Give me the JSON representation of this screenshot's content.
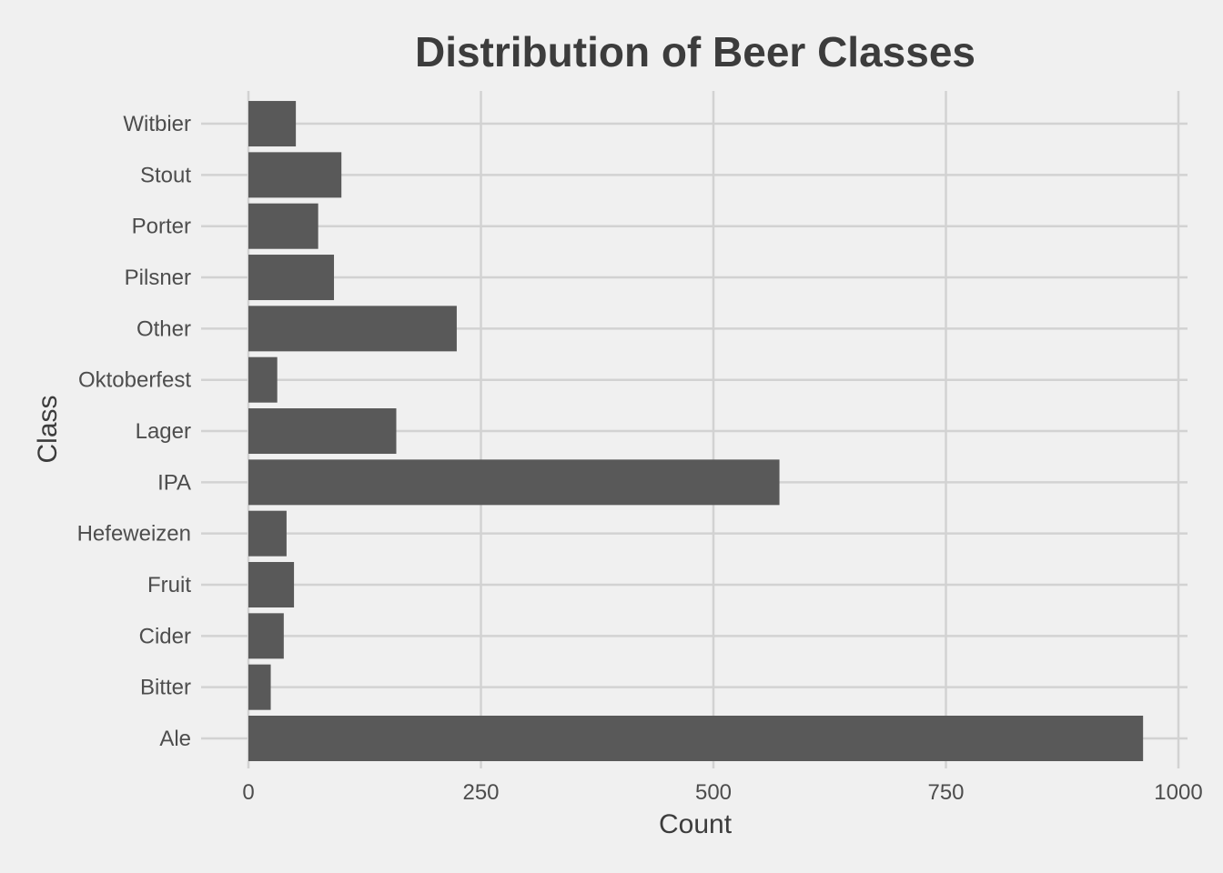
{
  "chart_data": {
    "type": "bar",
    "orientation": "horizontal",
    "title": "Distribution of Beer Classes",
    "xlabel": "Count",
    "ylabel": "Class",
    "xlim": [
      0,
      1000
    ],
    "x_ticks": [
      0,
      250,
      500,
      750,
      1000
    ],
    "grid": true,
    "colors": {
      "background": "#f0f0f0",
      "bar": "#595959",
      "grid": "#d2d2d2"
    },
    "categories": [
      "Ale",
      "Bitter",
      "Cider",
      "Fruit",
      "Hefeweizen",
      "IPA",
      "Lager",
      "Oktoberfest",
      "Other",
      "Pilsner",
      "Porter",
      "Stout",
      "Witbier"
    ],
    "values": [
      962,
      24,
      38,
      49,
      41,
      571,
      159,
      31,
      224,
      92,
      75,
      100,
      51
    ]
  }
}
